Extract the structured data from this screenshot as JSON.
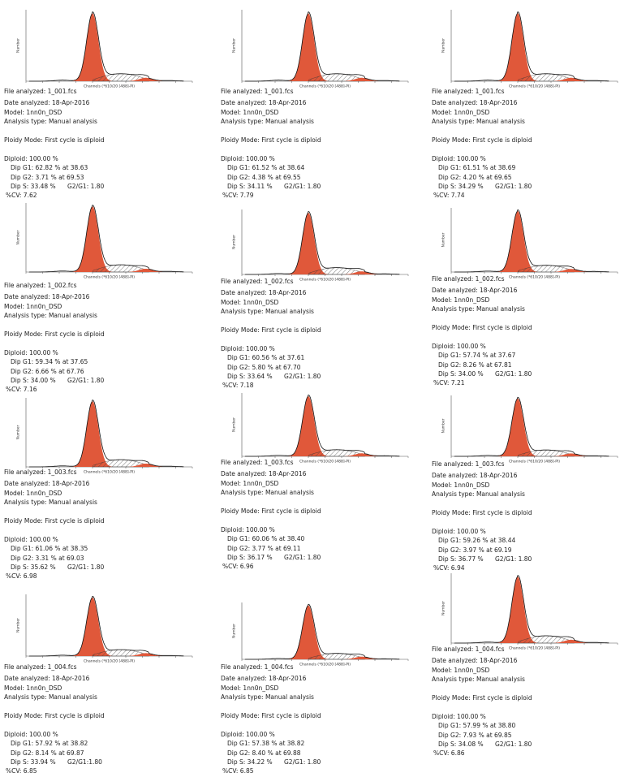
{
  "panels": [
    {
      "file": "File analyzed: 1_001.fcs",
      "date": "Date analyzed: 18-Apr-2016",
      "model": "Model: 1nn0n_DSD",
      "analysis": "Analysis type: Manual analysis",
      "ploidy": "Ploidy Mode: First cycle is diploid",
      "diploid": "Diploid: 100.00 %",
      "g1": "Dip G1: 62.82 % at 38.63",
      "g2": "Dip G2: 3.71 % at 69.53",
      "s": "Dip S: 33.48 %",
      "ratio": "G2/G1: 1.80",
      "cv": "%CV: 7.62",
      "y_label": "Number",
      "x_label": "Channels (*610/20 [488]-PI)"
    },
    {
      "file": "File analyzed: 1_001.fcs",
      "date": "Date analyzed: 18-Apr-2016",
      "model": "Model: 1nn0n_DSD",
      "analysis": "Analysis type: Manual analysis",
      "ploidy": "Ploidy Mode: First cycle is diploid",
      "diploid": "Diploid: 100.00 %",
      "g1": "Dip G1: 61.52 % at 38.64",
      "g2": "Dip G2: 4.38 % at 69.55",
      "s": "Dip S: 34.11 %",
      "ratio": "G2/G1: 1.80",
      "cv": "%CV: 7.79",
      "y_label": "Number",
      "x_label": "Channels (*610/20 [488]-PI)"
    },
    {
      "file": "File analyzed: 1_001.fcs",
      "date": "Date analyzed: 18-Apr-2016",
      "model": "Model: 1nn0n_DSD",
      "analysis": "Analysis type: Manual analysis",
      "ploidy": "Ploidy Mode: First cycle is diploid",
      "diploid": "Diploid: 100.00 %",
      "g1": "Dip G1: 61.51 % at 38.69",
      "g2": "Dip G2: 4.20 % at 69.65",
      "s": "Dip S: 34.29 %",
      "ratio": "G2/G1: 1.80",
      "cv": "%CV: 7.74",
      "y_label": "Number",
      "x_label": "Channels (*610/20 [488]-PI)"
    },
    {
      "file": "File analyzed: 1_002.fcs",
      "date": "Date analyzed: 18-Apr-2016",
      "model": "Model: 1nn0n_DSD",
      "analysis": "Analysis type: Manual analysis",
      "ploidy": "Ploidy Mode: First cycle is diploid",
      "diploid": "Diploid: 100.00 %",
      "g1": "Dip G1: 59.34 % at 37.65",
      "g2": "Dip G2: 6.66 % at 67.76",
      "s": "Dip S: 34.00 %",
      "ratio": "G2/G1: 1.80",
      "cv": "%CV: 7.16",
      "y_label": "Number",
      "x_label": "Channels (*610/20 [488]-PI)"
    },
    {
      "file": "File analyzed: 1_002.fcs",
      "date": "Date analyzed: 18-Apr-2016",
      "model": "Model: 1nn0n_DSD",
      "analysis": "Analysis type: Manual analysis",
      "ploidy": "Ploidy Mode: First cycle is diploid",
      "diploid": "Diploid: 100.00 %",
      "g1": "Dip G1: 60.56 % at 37.61",
      "g2": "Dip G2: 5.80 % at 67.70",
      "s": "Dip S: 33.64 %",
      "ratio": "G2/G1: 1.80",
      "cv": "%CV: 7.18",
      "y_label": "Number",
      "x_label": "Channels (*610/20 [488]-PI)"
    },
    {
      "file": "File analyzed: 1_002.fcs",
      "date": "Date analyzed: 18-Apr-2016",
      "model": "Model: 1nn0n_DSD",
      "analysis": "Analysis type: Manual analysis",
      "ploidy": "Ploidy Mode: First cycle is diploid",
      "diploid": "Diploid: 100.00 %",
      "g1": "Dip G1: 57.74 % at 37.67",
      "g2": "Dip G2: 8.26 % at 67.81",
      "s": "Dip S: 34.00 %",
      "ratio": "G2/G1: 1.80",
      "cv": "%CV: 7.21",
      "y_label": "Number",
      "x_label": "Channels (*610/20 [488]-PI)"
    },
    {
      "file": "File analyzed: 1_003.fcs",
      "date": "Date analyzed: 18-Apr-2016",
      "model": "Model: 1nn0n_DSD",
      "analysis": "Analysis type: Manual analysis",
      "ploidy": "Ploidy Mode: First cycle is diploid",
      "diploid": "Diploid: 100.00 %",
      "g1": "Dip G1: 61.06 % at 38.35",
      "g2": "Dip G2: 3.31 % at 69.03",
      "s": "Dip S: 35.62 %",
      "ratio": "G2/G1: 1.80",
      "cv": "%CV: 6.98",
      "y_label": "Number",
      "x_label": "Channels (*610/20 [488]-PI)"
    },
    {
      "file": "File analyzed: 1_003.fcs",
      "date": "Date analyzed: 18-Apr-2016",
      "model": "Model: 1nn0n_DSD",
      "analysis": "Analysis type: Manual analysis",
      "ploidy": "Ploidy Mode: First cycle is diploid",
      "diploid": "Diploid: 100.00 %",
      "g1": "Dip G1: 60.06 % at 38.40",
      "g2": "Dip G2: 3.77 % at 69.11",
      "s": "Dip S: 36.17 %",
      "ratio": "G2/G1: 1.80",
      "cv": "%CV: 6.96",
      "y_label": "Number",
      "x_label": "Channels (*610/20 [488]-PI)"
    },
    {
      "file": "File analyzed: 1_003.fcs",
      "date": "Date analyzed: 18-Apr-2016",
      "model": "Model: 1nn0n_DSD",
      "analysis": "Analysis type: Manual analysis",
      "ploidy": "Ploidy Mode: First cycle is diploid",
      "diploid": "Diploid: 100.00 %",
      "g1": "Dip G1: 59.26 % at 38.44",
      "g2": "Dip G2: 3.97 % at 69.19",
      "s": "Dip S: 36.77 %",
      "ratio": "G2/G1: 1.80",
      "cv": "%CV: 6.94",
      "y_label": "Number",
      "x_label": "Channels (*610/20 [488]-PI)"
    },
    {
      "file": "File analyzed: 1_004.fcs",
      "date": "Date analyzed: 18-Apr-2016",
      "model": "Model: 1nn0n_DSD",
      "analysis": "Analysis type: Manual analysis",
      "ploidy": "Ploidy Mode: First cycle is diploid",
      "diploid": "Diploid: 100.00 %",
      "g1": "Dip G1: 57.92 % at 38.82",
      "g2": "Dip G2: 8.14 % at 69.87",
      "s": "Dip S: 33.94 %",
      "ratio": "G2/G1:1.80",
      "cv": "%CV: 6.85",
      "y_label": "Number",
      "x_label": "Channels (*610/20 [488]-PI)"
    },
    {
      "file": "File analyzed: 1_004.fcs",
      "date": "Date analyzed: 18-Apr-2016",
      "model": "Model: 1nn0n_DSD",
      "analysis": "Analysis type: Manual analysis",
      "ploidy": "Ploidy Mode: First cycle is diploid",
      "diploid": "Diploid: 100.00 %",
      "g1": "Dip G1: 57.38 % at 38.82",
      "g2": "Dip G2: 8.40 % at 69.88",
      "s": "Dip S: 34.22 %",
      "ratio": "G2/G1: 1.80",
      "cv": "%CV: 6.85",
      "y_label": "Number",
      "x_label": "Channels (*610/20 [488]-PI)"
    },
    {
      "file": "File analyzed: 1_004.fcs",
      "date": "Date analyzed: 18-Apr-2016",
      "model": "Model: 1nn0n_DSD",
      "analysis": "Analysis type: Manual analysis",
      "ploidy": "Ploidy Mode: First cycle is diploid",
      "diploid": "Diploid: 100.00 %",
      "g1": "Dip G1: 57.99 % at 38.80",
      "g2": "Dip G2: 7.93 % at 69.85",
      "s": "Dip S: 34.08 %",
      "ratio": "G2/G1: 1.80",
      "cv": "%CV: 6.86",
      "y_label": "Number",
      "x_label": "Channels (*610/20 [488]-PI)"
    }
  ]
}
